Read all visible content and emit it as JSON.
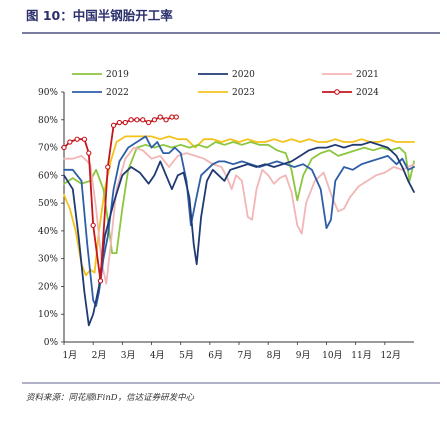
{
  "figure": {
    "title": "图 10：中国半钢胎开工率",
    "source": "资料来源：同花顺iFinD，信达证券研发中心"
  },
  "chart_data": {
    "type": "line",
    "title": "图 10：中国半钢胎开工率",
    "xlabel": "",
    "ylabel": "",
    "ylim": [
      0,
      90
    ],
    "y_ticks": [
      "0%",
      "10%",
      "20%",
      "30%",
      "40%",
      "50%",
      "60%",
      "70%",
      "80%",
      "90%"
    ],
    "categories": [
      "1月",
      "2月",
      "3月",
      "4月",
      "5月",
      "6月",
      "7月",
      "8月",
      "9月",
      "10月",
      "11月",
      "12月"
    ],
    "x_domain": [
      0,
      12
    ],
    "grid": false,
    "legend_position": "top",
    "series": [
      {
        "name": "2019",
        "color": "#8cc63f",
        "marker": false,
        "dash": false,
        "points": [
          [
            0,
            57
          ],
          [
            0.3,
            59
          ],
          [
            0.6,
            57
          ],
          [
            0.9,
            58
          ],
          [
            1.1,
            62
          ],
          [
            1.35,
            55
          ],
          [
            1.5,
            44
          ],
          [
            1.65,
            32
          ],
          [
            1.8,
            32
          ],
          [
            2.0,
            48
          ],
          [
            2.2,
            62
          ],
          [
            2.5,
            70
          ],
          [
            2.8,
            71
          ],
          [
            3.1,
            70
          ],
          [
            3.4,
            71
          ],
          [
            3.7,
            70
          ],
          [
            4.0,
            71
          ],
          [
            4.3,
            70
          ],
          [
            4.6,
            71
          ],
          [
            4.9,
            70
          ],
          [
            5.2,
            72
          ],
          [
            5.5,
            71
          ],
          [
            5.8,
            72
          ],
          [
            6.1,
            71
          ],
          [
            6.4,
            72
          ],
          [
            6.7,
            71
          ],
          [
            7.0,
            71
          ],
          [
            7.3,
            69
          ],
          [
            7.6,
            68
          ],
          [
            7.8,
            62
          ],
          [
            8.0,
            51
          ],
          [
            8.2,
            60
          ],
          [
            8.5,
            66
          ],
          [
            8.8,
            68
          ],
          [
            9.1,
            69
          ],
          [
            9.4,
            67
          ],
          [
            9.7,
            68
          ],
          [
            10.0,
            69
          ],
          [
            10.3,
            70
          ],
          [
            10.6,
            69
          ],
          [
            10.9,
            70
          ],
          [
            11.2,
            69
          ],
          [
            11.5,
            70
          ],
          [
            11.7,
            68
          ],
          [
            11.85,
            58
          ],
          [
            12,
            65
          ]
        ]
      },
      {
        "name": "2020",
        "color": "#1f3a73",
        "marker": false,
        "dash": false,
        "points": [
          [
            0,
            60
          ],
          [
            0.3,
            55
          ],
          [
            0.5,
            38
          ],
          [
            0.7,
            18
          ],
          [
            0.85,
            6
          ],
          [
            1.0,
            10
          ],
          [
            1.2,
            20
          ],
          [
            1.4,
            38
          ],
          [
            1.7,
            50
          ],
          [
            2.0,
            60
          ],
          [
            2.3,
            63
          ],
          [
            2.6,
            61
          ],
          [
            2.9,
            57
          ],
          [
            3.1,
            60
          ],
          [
            3.3,
            65
          ],
          [
            3.5,
            60
          ],
          [
            3.7,
            55
          ],
          [
            3.9,
            60
          ],
          [
            4.1,
            61
          ],
          [
            4.3,
            52
          ],
          [
            4.45,
            35
          ],
          [
            4.55,
            28
          ],
          [
            4.7,
            45
          ],
          [
            4.9,
            58
          ],
          [
            5.1,
            62
          ],
          [
            5.3,
            60
          ],
          [
            5.5,
            58
          ],
          [
            5.7,
            62
          ],
          [
            6.0,
            63
          ],
          [
            6.3,
            64
          ],
          [
            6.6,
            63
          ],
          [
            6.9,
            64
          ],
          [
            7.2,
            63
          ],
          [
            7.5,
            64
          ],
          [
            7.8,
            65
          ],
          [
            8.1,
            67
          ],
          [
            8.4,
            69
          ],
          [
            8.7,
            70
          ],
          [
            9.0,
            70
          ],
          [
            9.3,
            71
          ],
          [
            9.6,
            70
          ],
          [
            9.9,
            71
          ],
          [
            10.2,
            71
          ],
          [
            10.5,
            72
          ],
          [
            10.8,
            71
          ],
          [
            11.1,
            70
          ],
          [
            11.4,
            67
          ],
          [
            11.6,
            63
          ],
          [
            11.8,
            58
          ],
          [
            12,
            54
          ]
        ]
      },
      {
        "name": "2021",
        "color": "#f2b6b6",
        "marker": false,
        "dash": false,
        "points": [
          [
            0,
            66
          ],
          [
            0.3,
            66
          ],
          [
            0.6,
            67
          ],
          [
            0.9,
            64
          ],
          [
            1.1,
            48
          ],
          [
            1.3,
            28
          ],
          [
            1.45,
            21
          ],
          [
            1.6,
            35
          ],
          [
            1.8,
            55
          ],
          [
            2.1,
            66
          ],
          [
            2.4,
            70
          ],
          [
            2.7,
            69
          ],
          [
            3.0,
            66
          ],
          [
            3.3,
            67
          ],
          [
            3.6,
            63
          ],
          [
            3.9,
            67
          ],
          [
            4.2,
            68
          ],
          [
            4.5,
            67
          ],
          [
            4.8,
            66
          ],
          [
            5.1,
            64
          ],
          [
            5.4,
            63
          ],
          [
            5.6,
            59
          ],
          [
            5.75,
            55
          ],
          [
            5.9,
            60
          ],
          [
            6.1,
            58
          ],
          [
            6.3,
            45
          ],
          [
            6.45,
            44
          ],
          [
            6.6,
            55
          ],
          [
            6.8,
            62
          ],
          [
            7.0,
            60
          ],
          [
            7.2,
            57
          ],
          [
            7.4,
            59
          ],
          [
            7.6,
            60
          ],
          [
            7.8,
            54
          ],
          [
            8.0,
            42
          ],
          [
            8.15,
            39
          ],
          [
            8.3,
            50
          ],
          [
            8.6,
            58
          ],
          [
            8.9,
            61
          ],
          [
            9.2,
            52
          ],
          [
            9.4,
            47
          ],
          [
            9.6,
            48
          ],
          [
            9.8,
            52
          ],
          [
            10.1,
            56
          ],
          [
            10.4,
            58
          ],
          [
            10.7,
            60
          ],
          [
            11.0,
            61
          ],
          [
            11.3,
            63
          ],
          [
            11.6,
            62
          ],
          [
            11.8,
            63
          ],
          [
            12,
            64
          ]
        ]
      },
      {
        "name": "2022",
        "color": "#2e5ea8",
        "marker": false,
        "dash": false,
        "points": [
          [
            0,
            62
          ],
          [
            0.3,
            62
          ],
          [
            0.6,
            58
          ],
          [
            0.8,
            35
          ],
          [
            1.0,
            15
          ],
          [
            1.1,
            13
          ],
          [
            1.2,
            18
          ],
          [
            1.35,
            30
          ],
          [
            1.5,
            38
          ],
          [
            1.7,
            55
          ],
          [
            1.9,
            65
          ],
          [
            2.2,
            70
          ],
          [
            2.5,
            72
          ],
          [
            2.8,
            74
          ],
          [
            3.0,
            70
          ],
          [
            3.2,
            72
          ],
          [
            3.4,
            68
          ],
          [
            3.6,
            68
          ],
          [
            3.8,
            70
          ],
          [
            4.0,
            68
          ],
          [
            4.2,
            58
          ],
          [
            4.35,
            42
          ],
          [
            4.5,
            50
          ],
          [
            4.7,
            60
          ],
          [
            4.9,
            62
          ],
          [
            5.1,
            64
          ],
          [
            5.3,
            65
          ],
          [
            5.5,
            65
          ],
          [
            5.8,
            64
          ],
          [
            6.1,
            65
          ],
          [
            6.4,
            64
          ],
          [
            6.7,
            63
          ],
          [
            7.0,
            64
          ],
          [
            7.3,
            65
          ],
          [
            7.6,
            64
          ],
          [
            7.9,
            63
          ],
          [
            8.2,
            64
          ],
          [
            8.5,
            62
          ],
          [
            8.8,
            55
          ],
          [
            9.0,
            41
          ],
          [
            9.15,
            44
          ],
          [
            9.3,
            58
          ],
          [
            9.6,
            63
          ],
          [
            9.9,
            62
          ],
          [
            10.2,
            64
          ],
          [
            10.5,
            65
          ],
          [
            10.8,
            66
          ],
          [
            11.1,
            67
          ],
          [
            11.4,
            64
          ],
          [
            11.6,
            66
          ],
          [
            11.8,
            62
          ],
          [
            12,
            63
          ]
        ]
      },
      {
        "name": "2023",
        "color": "#f4c21b",
        "marker": false,
        "dash": false,
        "points": [
          [
            0,
            53
          ],
          [
            0.2,
            48
          ],
          [
            0.4,
            40
          ],
          [
            0.6,
            28
          ],
          [
            0.75,
            24
          ],
          [
            0.9,
            26
          ],
          [
            1.05,
            25
          ],
          [
            1.2,
            40
          ],
          [
            1.4,
            55
          ],
          [
            1.6,
            65
          ],
          [
            1.8,
            72
          ],
          [
            2.1,
            74
          ],
          [
            2.4,
            74
          ],
          [
            2.7,
            74
          ],
          [
            3.0,
            74
          ],
          [
            3.3,
            73
          ],
          [
            3.6,
            74
          ],
          [
            3.9,
            73
          ],
          [
            4.2,
            73
          ],
          [
            4.5,
            70
          ],
          [
            4.8,
            73
          ],
          [
            5.1,
            73
          ],
          [
            5.4,
            72
          ],
          [
            5.7,
            73
          ],
          [
            6.0,
            72
          ],
          [
            6.3,
            73
          ],
          [
            6.6,
            72
          ],
          [
            6.9,
            72
          ],
          [
            7.2,
            73
          ],
          [
            7.5,
            72
          ],
          [
            7.8,
            73
          ],
          [
            8.1,
            72
          ],
          [
            8.4,
            73
          ],
          [
            8.7,
            72
          ],
          [
            9.0,
            72
          ],
          [
            9.3,
            73
          ],
          [
            9.6,
            72
          ],
          [
            9.9,
            72
          ],
          [
            10.2,
            73
          ],
          [
            10.5,
            72
          ],
          [
            10.8,
            72
          ],
          [
            11.1,
            73
          ],
          [
            11.4,
            72
          ],
          [
            11.7,
            72
          ],
          [
            12,
            72
          ]
        ]
      },
      {
        "name": "2024",
        "color": "#c4161c",
        "marker": true,
        "dash": false,
        "points": [
          [
            0,
            70
          ],
          [
            0.2,
            72
          ],
          [
            0.45,
            73
          ],
          [
            0.7,
            73
          ],
          [
            0.85,
            68
          ],
          [
            1.0,
            42
          ],
          [
            1.25,
            22
          ],
          [
            1.5,
            63
          ],
          [
            1.7,
            78
          ],
          [
            1.9,
            79
          ],
          [
            2.1,
            79
          ],
          [
            2.3,
            80
          ],
          [
            2.5,
            80
          ],
          [
            2.7,
            80
          ],
          [
            2.9,
            79
          ],
          [
            3.1,
            80
          ],
          [
            3.3,
            81
          ],
          [
            3.5,
            80
          ],
          [
            3.7,
            81
          ],
          [
            3.85,
            81
          ]
        ]
      }
    ]
  }
}
